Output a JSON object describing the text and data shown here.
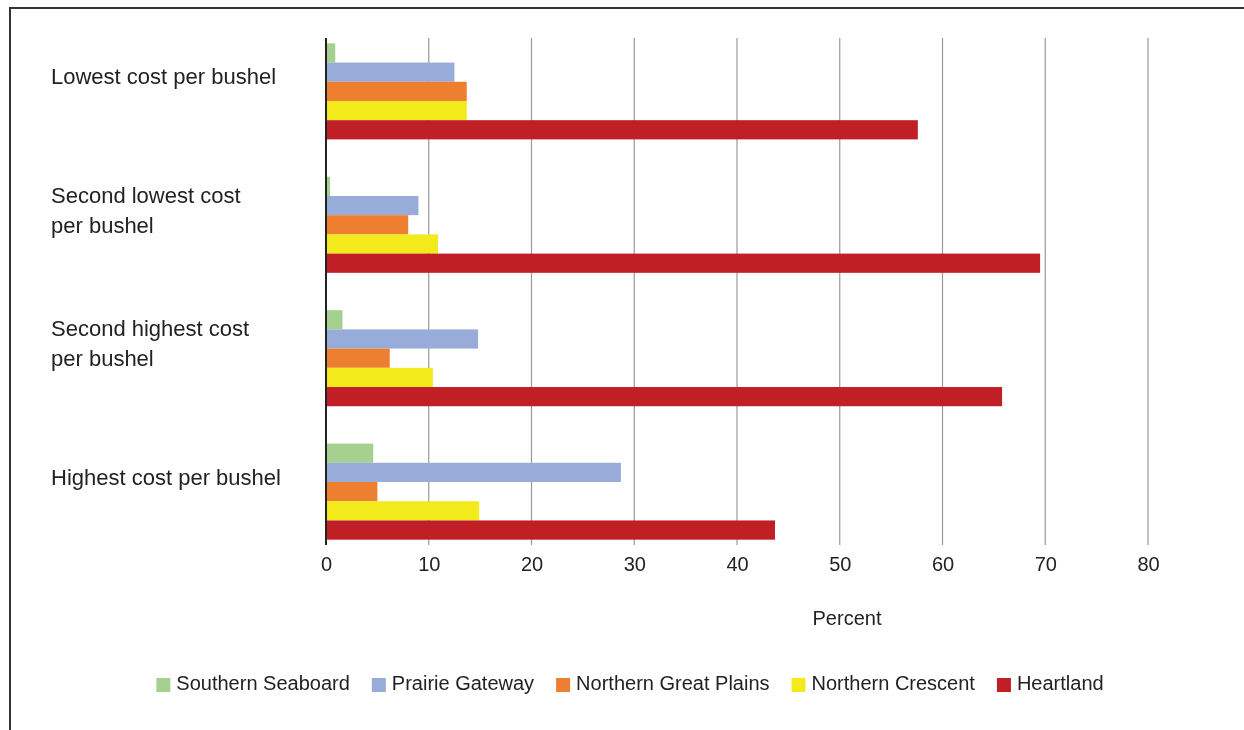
{
  "chart_data": {
    "type": "bar",
    "orientation": "horizontal",
    "xlabel": "Percent",
    "categories": [
      "Lowest cost per bushel",
      "Second lowest cost per bushel",
      "Second highest cost per bushel",
      "Highest cost per bushel"
    ],
    "series": [
      {
        "name": "Southern Seaboard",
        "color": "#a5d08f",
        "values": [
          0.9,
          0.4,
          1.6,
          4.6
        ]
      },
      {
        "name": "Prairie Gateway",
        "color": "#98acd9",
        "values": [
          12.5,
          9.0,
          14.8,
          28.7
        ]
      },
      {
        "name": "Northern Great Plains",
        "color": "#ee7f30",
        "values": [
          13.7,
          8.0,
          6.2,
          5.0
        ]
      },
      {
        "name": "Northern Crescent",
        "color": "#f2ea1a",
        "values": [
          13.7,
          10.9,
          10.4,
          14.9
        ]
      },
      {
        "name": "Heartland",
        "color": "#c01f26",
        "values": [
          57.6,
          69.5,
          65.8,
          43.7
        ]
      }
    ],
    "xlim": [
      0,
      80
    ],
    "xticks": [
      0,
      10,
      20,
      30,
      40,
      50,
      60,
      70,
      80
    ],
    "grid": "x",
    "legend": "bottom"
  }
}
